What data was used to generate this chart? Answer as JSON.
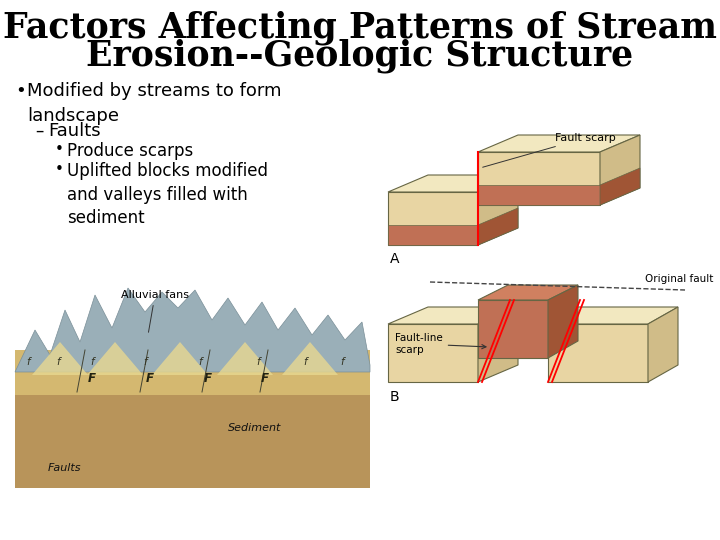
{
  "background_color": "#ffffff",
  "title_line1": "Factors Affecting Patterns of Stream",
  "title_line2": "Erosion--Geologic Structure",
  "title_fontsize": 25,
  "title_color": "#000000",
  "bullet1": "Modified by streams to form\nlandscape",
  "bullet1_fontsize": 13,
  "sub_bullet1": "Faults",
  "sub_bullet1_fontsize": 13,
  "sub_sub_bullet1": "Produce scarps",
  "sub_sub_bullet2": "Uplifted blocks modified\nand valleys filled with\nsediment",
  "sub_sub_fontsize": 12,
  "label_A": "A",
  "label_B": "B",
  "text_fault_scarp": "Fault scarp",
  "text_original_fault": "Original fault",
  "text_fault_line_scarp": "Fault-line\nscarp",
  "text_alluvial_fans": "Alluvial fans",
  "text_faults": "Faults",
  "text_sediment": "Sediment",
  "c_sand": "#e8d5a3",
  "c_sand_top": "#f2e8c0",
  "c_sand_side": "#d0bc88",
  "c_red": "#c07055",
  "c_red_top": "#d08060",
  "c_red_side": "#a05535",
  "c_outline": "#666644",
  "c_mountain": "#9aafb8",
  "c_ground": "#b8945a",
  "c_alluvial": "#d4b870",
  "c_fan": "#e8d890"
}
